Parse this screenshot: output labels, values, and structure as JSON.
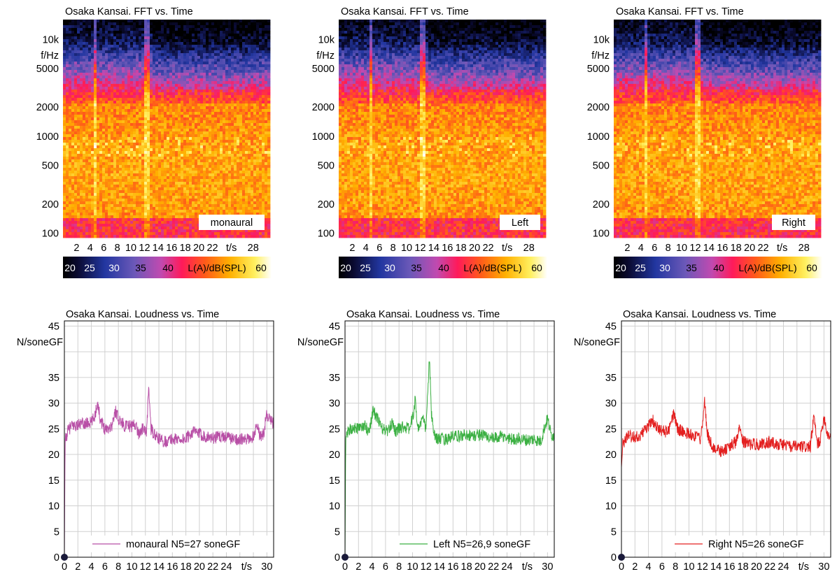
{
  "colors": {
    "monaural": "#b84fa6",
    "left": "#3cb043",
    "right": "#e32020",
    "grid": "#d0d0d0",
    "axis": "#000000"
  },
  "colorbar": {
    "label": "L(A)/dB(SPL)",
    "ticks": [
      "20",
      "25",
      "30",
      "35",
      "40",
      "60"
    ],
    "range_db": [
      20,
      62
    ]
  },
  "chart_data": [
    {
      "type": "heatmap",
      "title": "Osaka Kansai. FFT vs. Time",
      "badge": "monaural",
      "ylabel": "f/Hz",
      "xlabel": "t/s",
      "y_scale": "log",
      "ylim_hz": [
        90,
        16000
      ],
      "yticks": [
        "10k",
        "5000",
        "2000",
        "1000",
        "500",
        "200",
        "100"
      ],
      "ytick_values": [
        10000,
        5000,
        2000,
        1000,
        500,
        200,
        100
      ],
      "xticks": [
        "2",
        "4",
        "6",
        "8",
        "10",
        "12",
        "14",
        "16",
        "18",
        "20",
        "22",
        "28"
      ],
      "xtick_values": [
        2,
        4,
        6,
        8,
        10,
        12,
        14,
        16,
        18,
        20,
        22,
        28
      ],
      "xlim_s": [
        0,
        30.5
      ],
      "events_s": [
        4.8,
        12.4
      ]
    },
    {
      "type": "heatmap",
      "title": "Osaka Kansai. FFT vs. Time",
      "badge": "Left",
      "ylabel": "f/Hz",
      "xlabel": "t/s",
      "y_scale": "log",
      "ylim_hz": [
        90,
        16000
      ],
      "yticks": [
        "10k",
        "5000",
        "2000",
        "1000",
        "500",
        "200",
        "100"
      ],
      "ytick_values": [
        10000,
        5000,
        2000,
        1000,
        500,
        200,
        100
      ],
      "xticks": [
        "2",
        "4",
        "6",
        "8",
        "10",
        "12",
        "14",
        "16",
        "18",
        "20",
        "22",
        "28"
      ],
      "xtick_values": [
        2,
        4,
        6,
        8,
        10,
        12,
        14,
        16,
        18,
        20,
        22,
        28
      ],
      "xlim_s": [
        0,
        30.5
      ],
      "events_s": [
        4.8,
        12.4
      ]
    },
    {
      "type": "heatmap",
      "title": "Osaka Kansai. FFT vs. Time",
      "badge": "Right",
      "ylabel": "f/Hz",
      "xlabel": "t/s",
      "y_scale": "log",
      "ylim_hz": [
        90,
        16000
      ],
      "yticks": [
        "10k",
        "5000",
        "2000",
        "1000",
        "500",
        "200",
        "100"
      ],
      "ytick_values": [
        10000,
        5000,
        2000,
        1000,
        500,
        200,
        100
      ],
      "xticks": [
        "2",
        "4",
        "6",
        "8",
        "10",
        "12",
        "14",
        "16",
        "18",
        "20",
        "22",
        "28"
      ],
      "xtick_values": [
        2,
        4,
        6,
        8,
        10,
        12,
        14,
        16,
        18,
        20,
        22,
        28
      ],
      "xlim_s": [
        0,
        30.5
      ],
      "events_s": [
        4.8,
        12.4
      ]
    },
    {
      "type": "line",
      "title": "Osaka Kansai. Loudness vs. Time",
      "ylabel": "N/soneGF",
      "xlabel": "t/s",
      "xlim": [
        0,
        31
      ],
      "ylim": [
        0,
        46
      ],
      "yticks": [
        0,
        5,
        10,
        15,
        20,
        25,
        30,
        35,
        45
      ],
      "xticks": [
        0,
        2,
        4,
        6,
        8,
        10,
        12,
        14,
        16,
        18,
        20,
        22,
        24,
        30
      ],
      "legend": "monaural N5=27 soneGF",
      "series": [
        {
          "name": "monaural N5=27 soneGF",
          "color": "#b84fa6",
          "points": [
            [
              0,
              0
            ],
            [
              0.1,
              22.5
            ],
            [
              0.5,
              24.5
            ],
            [
              1,
              25.5
            ],
            [
              2,
              25.8
            ],
            [
              3,
              26
            ],
            [
              4,
              26.2
            ],
            [
              4.5,
              27.5
            ],
            [
              4.9,
              30.2
            ],
            [
              5.3,
              27
            ],
            [
              6,
              25
            ],
            [
              7,
              25.5
            ],
            [
              7.6,
              28.5
            ],
            [
              8,
              27
            ],
            [
              9,
              25.5
            ],
            [
              10,
              25.5
            ],
            [
              10.5,
              26
            ],
            [
              11,
              24
            ],
            [
              11.5,
              25
            ],
            [
              12.2,
              24.5
            ],
            [
              12.5,
              33.8
            ],
            [
              12.8,
              25
            ],
            [
              13.5,
              23.5
            ],
            [
              14,
              23
            ],
            [
              15,
              22.5
            ],
            [
              16,
              23
            ],
            [
              17,
              23
            ],
            [
              18,
              23
            ],
            [
              19,
              24.5
            ],
            [
              20,
              24
            ],
            [
              21,
              23.5
            ],
            [
              22,
              23.2
            ],
            [
              23,
              23.5
            ],
            [
              24,
              23.5
            ],
            [
              25,
              23
            ],
            [
              26,
              23
            ],
            [
              27,
              22.8
            ],
            [
              28,
              23.5
            ],
            [
              28.5,
              26
            ],
            [
              29,
              23.5
            ],
            [
              29.5,
              24
            ],
            [
              30,
              28
            ],
            [
              30.5,
              26.5
            ],
            [
              31,
              26
            ]
          ]
        }
      ]
    },
    {
      "type": "line",
      "title": "Osaka Kansai. Loudness vs. Time",
      "ylabel": "N/soneGF",
      "xlabel": "t/s",
      "xlim": [
        0,
        31
      ],
      "ylim": [
        0,
        46
      ],
      "yticks": [
        0,
        5,
        10,
        15,
        20,
        25,
        30,
        35,
        45
      ],
      "xticks": [
        0,
        2,
        4,
        6,
        8,
        10,
        12,
        14,
        16,
        18,
        20,
        22,
        24,
        30
      ],
      "legend": "Left N5=26,9 soneGF",
      "series": [
        {
          "name": "Left N5=26,9 soneGF",
          "color": "#3cb043",
          "points": [
            [
              0,
              0
            ],
            [
              0.1,
              23
            ],
            [
              0.5,
              24.5
            ],
            [
              1,
              25
            ],
            [
              2,
              25.2
            ],
            [
              3,
              25.5
            ],
            [
              3.5,
              24.5
            ],
            [
              4.2,
              28.5
            ],
            [
              4.8,
              27
            ],
            [
              5.5,
              25
            ],
            [
              6.5,
              24.5
            ],
            [
              7,
              26.5
            ],
            [
              7.5,
              24.5
            ],
            [
              8.5,
              25.5
            ],
            [
              9.5,
              25
            ],
            [
              10,
              27
            ],
            [
              10.4,
              30.5
            ],
            [
              10.8,
              25
            ],
            [
              11.5,
              27
            ],
            [
              12,
              25
            ],
            [
              12.5,
              38.8
            ],
            [
              12.8,
              28
            ],
            [
              13.2,
              23.5
            ],
            [
              14,
              23
            ],
            [
              15,
              23
            ],
            [
              16,
              23.5
            ],
            [
              17,
              23.5
            ],
            [
              18,
              24
            ],
            [
              19,
              23.5
            ],
            [
              20,
              24
            ],
            [
              21,
              23.5
            ],
            [
              22,
              23
            ],
            [
              23,
              23.5
            ],
            [
              24,
              23.2
            ],
            [
              25,
              23
            ],
            [
              26,
              23
            ],
            [
              27,
              22.8
            ],
            [
              28,
              23
            ],
            [
              29,
              22.5
            ],
            [
              29.5,
              25
            ],
            [
              30,
              27
            ],
            [
              30.5,
              24
            ],
            [
              31,
              23.5
            ]
          ]
        }
      ]
    },
    {
      "type": "line",
      "title": "Osaka Kansai. Loudness vs. Time",
      "ylabel": "N/soneGF",
      "xlabel": "t/s",
      "xlim": [
        0,
        31
      ],
      "ylim": [
        0,
        46
      ],
      "yticks": [
        0,
        5,
        10,
        15,
        20,
        25,
        30,
        35,
        45
      ],
      "xticks": [
        0,
        2,
        4,
        6,
        8,
        10,
        12,
        14,
        16,
        18,
        20,
        22,
        24,
        30
      ],
      "legend": "Right N5=26 soneGF",
      "series": [
        {
          "name": "Right N5=26 soneGF",
          "color": "#e32020",
          "points": [
            [
              0,
              17.5
            ],
            [
              0.2,
              22
            ],
            [
              0.5,
              22.8
            ],
            [
              1,
              23.5
            ],
            [
              2,
              23.5
            ],
            [
              3,
              24
            ],
            [
              4,
              25.5
            ],
            [
              4.6,
              26.8
            ],
            [
              5,
              25.5
            ],
            [
              6,
              24.5
            ],
            [
              7,
              24.5
            ],
            [
              7.8,
              28
            ],
            [
              8.3,
              25
            ],
            [
              9,
              24.5
            ],
            [
              10,
              24
            ],
            [
              11,
              23.5
            ],
            [
              11.8,
              23
            ],
            [
              12.3,
              31
            ],
            [
              12.7,
              24
            ],
            [
              13.5,
              21.5
            ],
            [
              14,
              21
            ],
            [
              15,
              20.5
            ],
            [
              16,
              21.5
            ],
            [
              17,
              22.5
            ],
            [
              17.6,
              25.5
            ],
            [
              18,
              22.5
            ],
            [
              19,
              22
            ],
            [
              20,
              22
            ],
            [
              21,
              22
            ],
            [
              22,
              22.5
            ],
            [
              23,
              22
            ],
            [
              24,
              22
            ],
            [
              25,
              21.5
            ],
            [
              26,
              21.5
            ],
            [
              27,
              21.5
            ],
            [
              28,
              21.5
            ],
            [
              28.5,
              27.5
            ],
            [
              29,
              22
            ],
            [
              29.5,
              23
            ],
            [
              30,
              27.5
            ],
            [
              30.5,
              24
            ],
            [
              31,
              23.5
            ]
          ]
        }
      ]
    }
  ]
}
